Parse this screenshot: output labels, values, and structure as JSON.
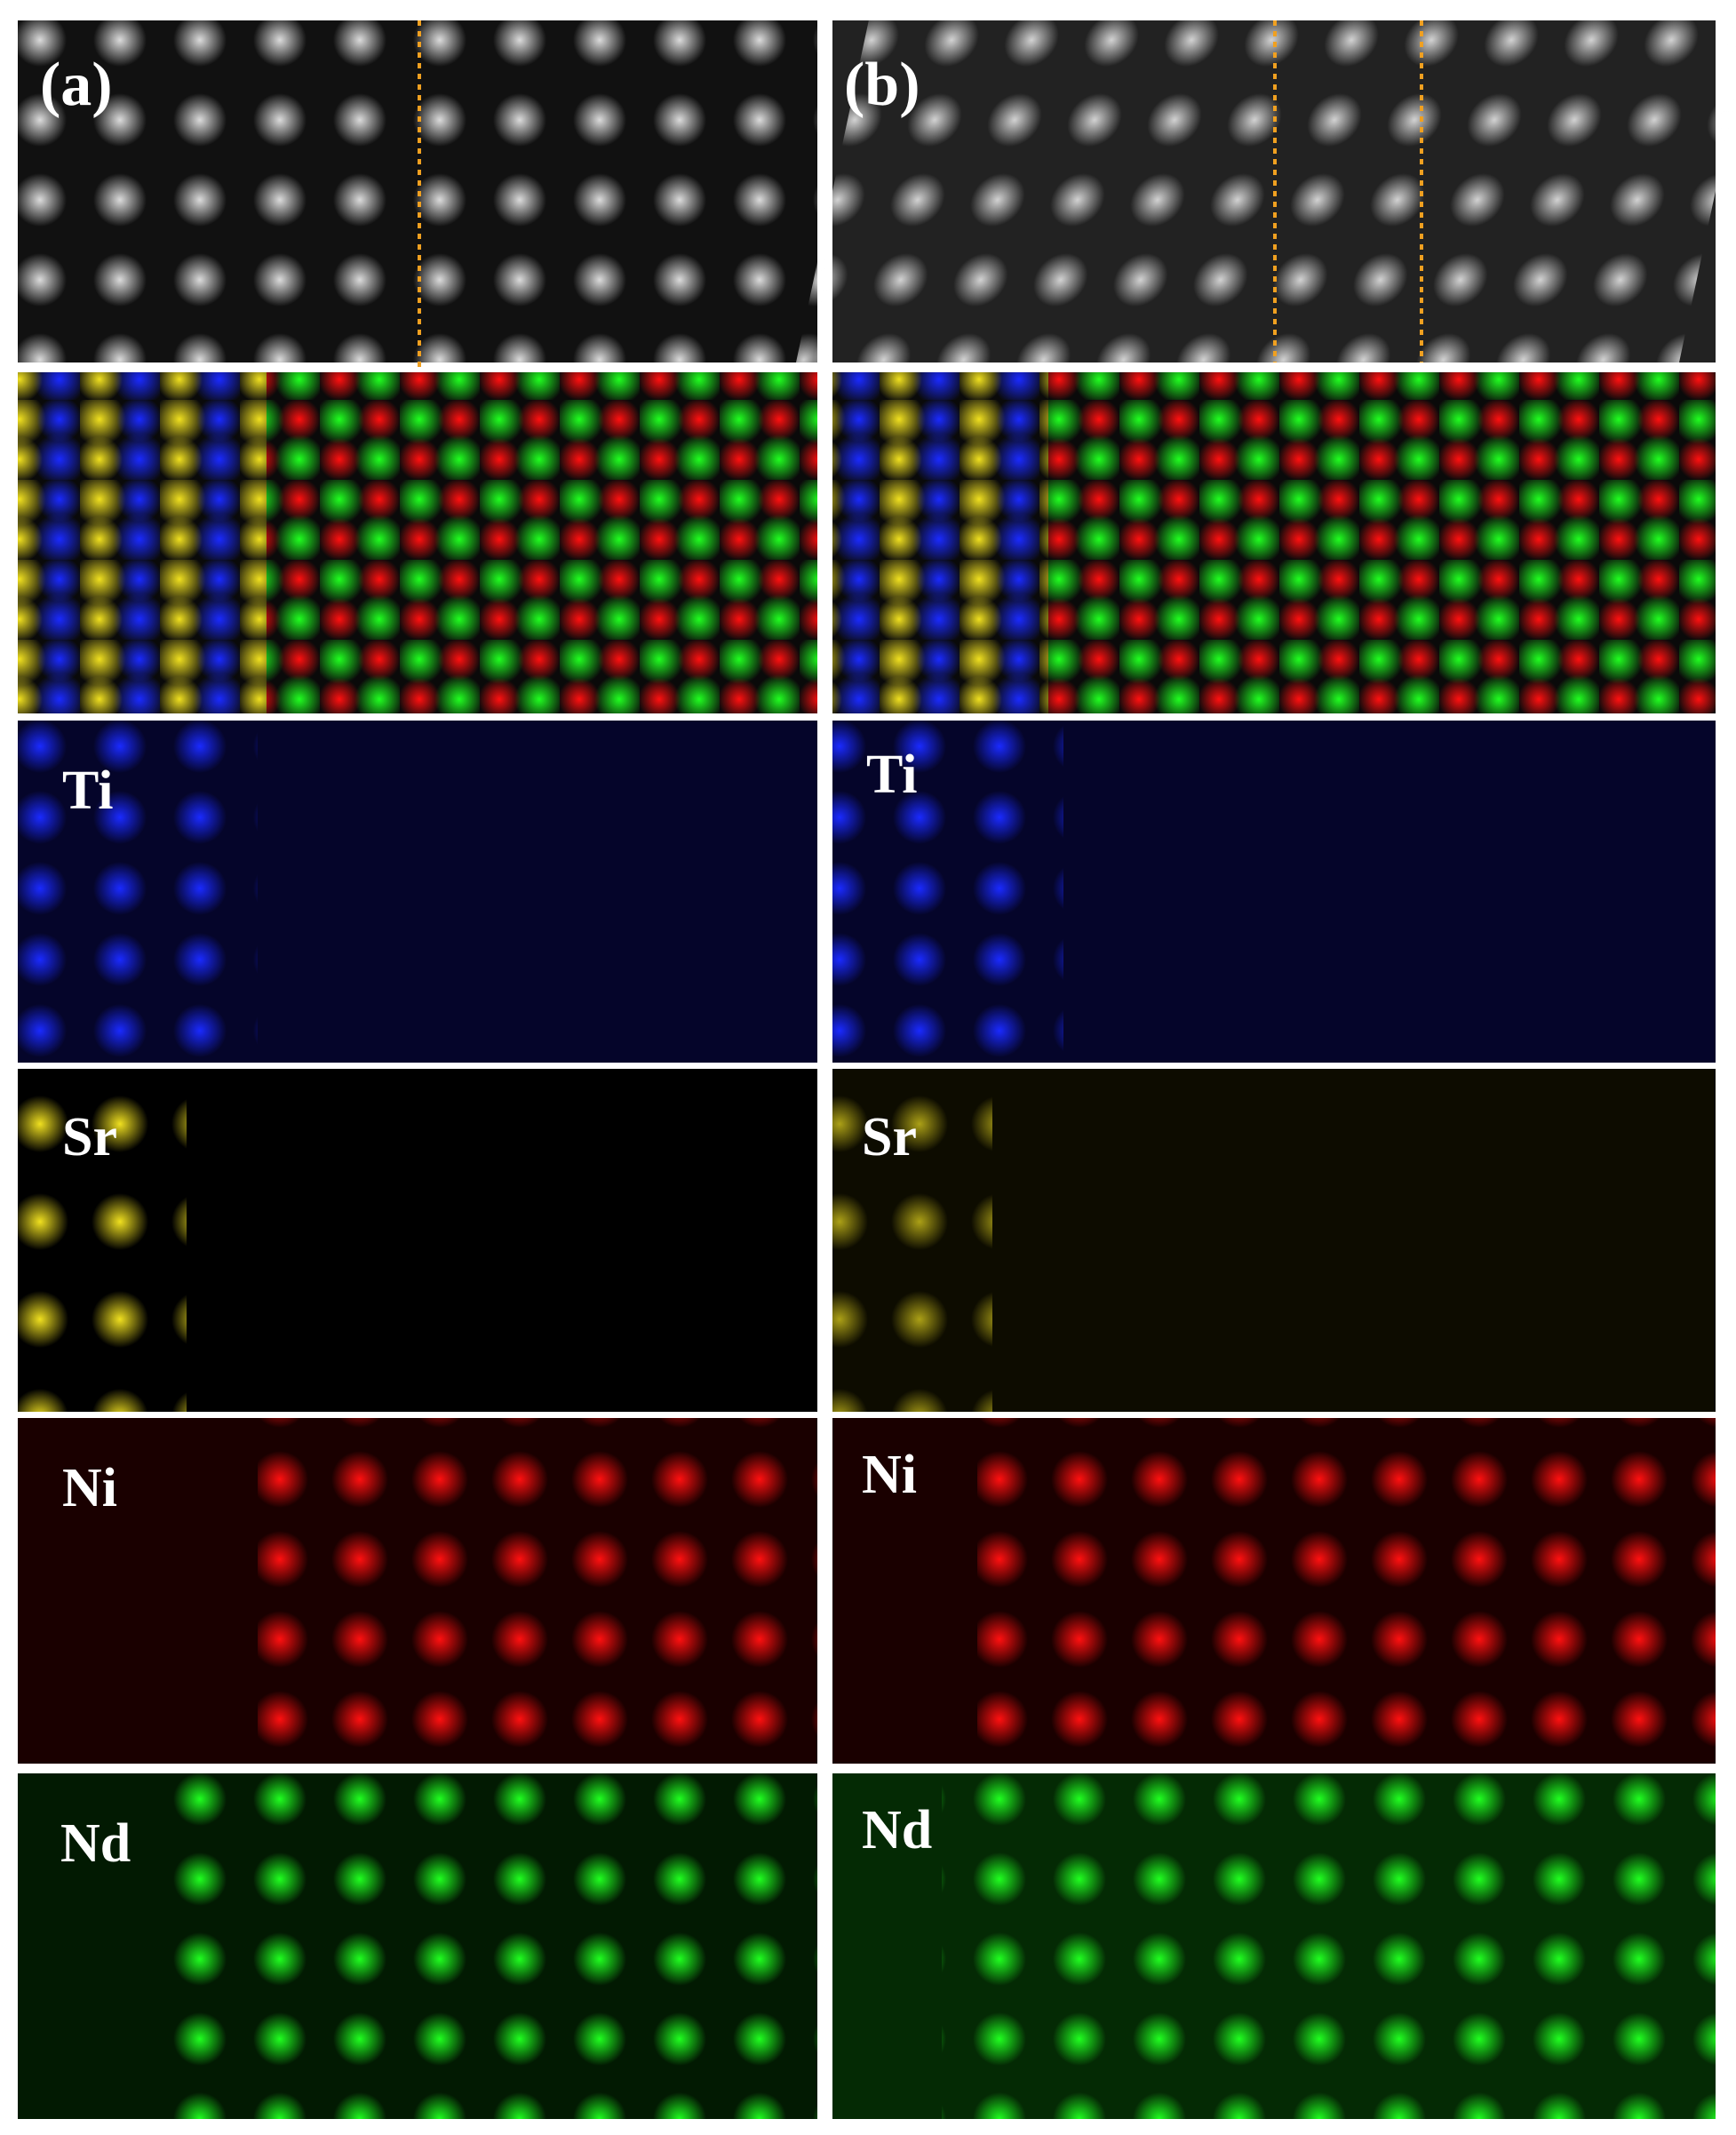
{
  "columns": [
    {
      "label": "(a)",
      "maps": [
        "Ti",
        "Sr",
        "Ni",
        "Nd"
      ]
    },
    {
      "label": "(b)",
      "maps": [
        "Ti",
        "Sr",
        "Ni",
        "Nd"
      ]
    }
  ]
}
